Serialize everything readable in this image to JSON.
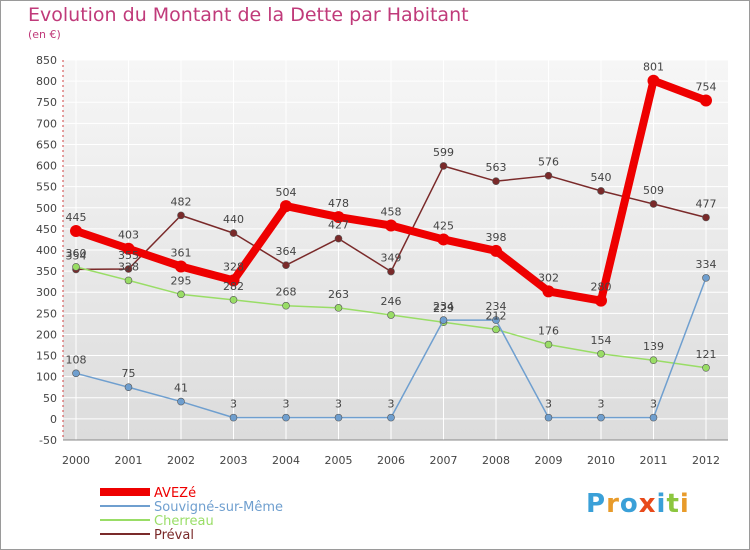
{
  "chart_data": {
    "type": "line",
    "title": "Evolution du Montant de la Dette par Habitant",
    "subtitle": "(en €)",
    "x": [
      "2000",
      "2001",
      "2002",
      "2003",
      "2004",
      "2005",
      "2006",
      "2007",
      "2008",
      "2009",
      "2010",
      "2011",
      "2012"
    ],
    "ylim": [
      -50,
      850
    ],
    "yticks": [
      -50,
      0,
      50,
      100,
      150,
      200,
      250,
      300,
      350,
      400,
      450,
      500,
      550,
      600,
      650,
      700,
      750,
      800,
      850
    ],
    "grid": true,
    "legend_position": "bottom-left",
    "series": [
      {
        "name": "AVEZé",
        "color": "#ee0000",
        "values": [
          445,
          403,
          361,
          328,
          504,
          478,
          458,
          425,
          398,
          302,
          280,
          801,
          754
        ]
      },
      {
        "name": "Souvigné-sur-Même",
        "color": "#6f9fcf",
        "values": [
          108,
          75,
          41,
          3,
          3,
          3,
          3,
          234,
          234,
          3,
          3,
          3,
          334
        ]
      },
      {
        "name": "Cherreau",
        "color": "#99dd66",
        "values": [
          360,
          328,
          295,
          282,
          268,
          263,
          246,
          229,
          212,
          176,
          154,
          139,
          121
        ]
      },
      {
        "name": "Préval",
        "color": "#7a2a2a",
        "values": [
          354,
          355,
          482,
          440,
          364,
          427,
          349,
          599,
          563,
          576,
          540,
          509,
          477
        ]
      }
    ]
  },
  "logo": {
    "letters": [
      "P",
      "r",
      "o",
      "x",
      "i",
      "t",
      "i"
    ],
    "colors": [
      "#3aa0d8",
      "#e89b2a",
      "#3aa0d8",
      "#e84a1a",
      "#3aa0d8",
      "#8cc63f",
      "#e89b2a"
    ]
  }
}
